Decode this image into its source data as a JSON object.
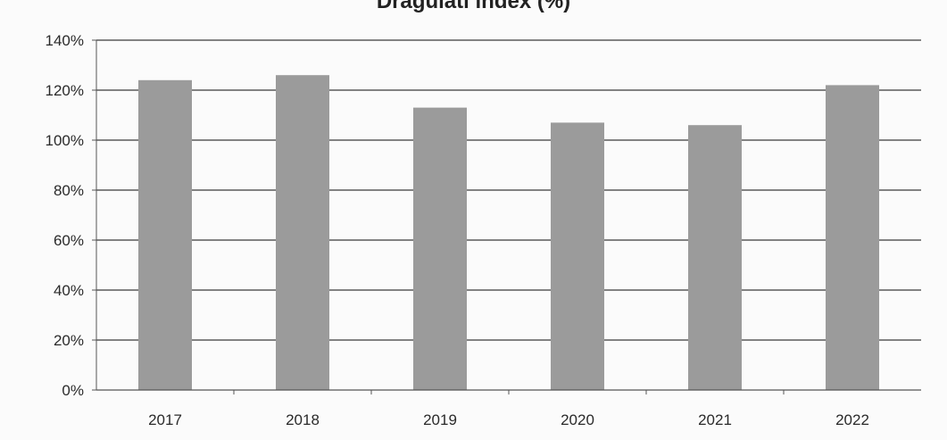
{
  "chart_data": {
    "type": "bar",
    "title": "Dráguláti index (%)",
    "categories": [
      "2017",
      "2018",
      "2019",
      "2020",
      "2021",
      "2022"
    ],
    "values": [
      124,
      126,
      113,
      107,
      106,
      122
    ],
    "ylim": [
      0,
      140
    ],
    "yticks": [
      "0%",
      "20%",
      "40%",
      "60%",
      "80%",
      "100%",
      "120%",
      "140%"
    ],
    "xlabel": "",
    "ylabel": "",
    "grid": true,
    "legend": "none",
    "colors": {
      "bar": "#9b9b9b",
      "grid": "#3a3a3a",
      "axis": "#555555"
    }
  }
}
